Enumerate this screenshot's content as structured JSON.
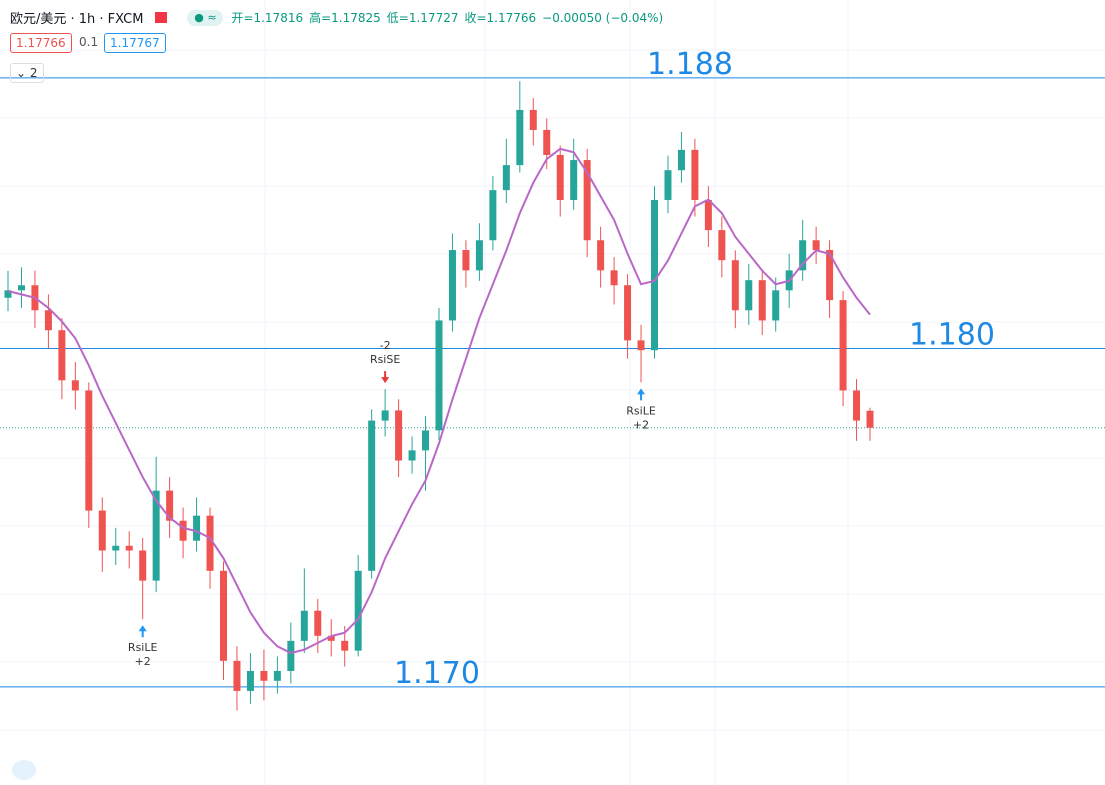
{
  "chart_data": {
    "type": "candlestick",
    "title": "欧元/美元 · 1h · FXCM",
    "header_values": [
      "开=1.17816",
      "高=1.17825",
      "低=1.17727",
      "收=1.17766",
      "−0.00050 (−0.04%)"
    ],
    "bid": "1.17766",
    "spread": "0.1",
    "ask": "1.17767",
    "indicator_count": "2",
    "up_color": "#26a69a",
    "down_color": "#ef5350",
    "ylim": [
      1.1671,
      1.1903
    ],
    "ohlc": [
      [
        1.1815,
        1.1823,
        1.1811,
        1.18172
      ],
      [
        1.18172,
        1.1824,
        1.1812,
        1.18187
      ],
      [
        1.18187,
        1.1823,
        1.1806,
        1.18113
      ],
      [
        1.18113,
        1.1816,
        1.18,
        1.18054
      ],
      [
        1.18054,
        1.1809,
        1.1785,
        1.17906
      ],
      [
        1.17906,
        1.1796,
        1.1782,
        1.17876
      ],
      [
        1.17876,
        1.179,
        1.1747,
        1.17521
      ],
      [
        1.17521,
        1.1756,
        1.1734,
        1.17403
      ],
      [
        1.17403,
        1.1747,
        1.1736,
        1.17417
      ],
      [
        1.17417,
        1.1746,
        1.1735,
        1.17403
      ],
      [
        1.17403,
        1.1744,
        1.172,
        1.17314
      ],
      [
        1.17314,
        1.1768,
        1.1728,
        1.1758
      ],
      [
        1.1758,
        1.1762,
        1.1744,
        1.17491
      ],
      [
        1.17491,
        1.1753,
        1.1738,
        1.17432
      ],
      [
        1.17432,
        1.1756,
        1.174,
        1.17506
      ],
      [
        1.17506,
        1.1753,
        1.1729,
        1.17343
      ],
      [
        1.17343,
        1.1737,
        1.1702,
        1.17077
      ],
      [
        1.17077,
        1.1712,
        1.1693,
        1.16988
      ],
      [
        1.16988,
        1.171,
        1.1695,
        1.17047
      ],
      [
        1.17047,
        1.1711,
        1.1696,
        1.17018
      ],
      [
        1.17018,
        1.1709,
        1.1698,
        1.17047
      ],
      [
        1.17047,
        1.1719,
        1.1701,
        1.17136
      ],
      [
        1.17136,
        1.1735,
        1.171,
        1.17225
      ],
      [
        1.17225,
        1.1726,
        1.171,
        1.17151
      ],
      [
        1.17151,
        1.172,
        1.1709,
        1.17136
      ],
      [
        1.17136,
        1.1718,
        1.1706,
        1.17107
      ],
      [
        1.17107,
        1.1739,
        1.1709,
        1.17343
      ],
      [
        1.17343,
        1.1782,
        1.1732,
        1.17787
      ],
      [
        1.17787,
        1.1788,
        1.1774,
        1.17817
      ],
      [
        1.17817,
        1.1785,
        1.1762,
        1.17669
      ],
      [
        1.17669,
        1.1774,
        1.1763,
        1.17699
      ],
      [
        1.17699,
        1.178,
        1.1758,
        1.17758
      ],
      [
        1.17758,
        1.1812,
        1.1773,
        1.18083
      ],
      [
        1.18083,
        1.1834,
        1.1805,
        1.18291
      ],
      [
        1.18291,
        1.1832,
        1.1818,
        1.18231
      ],
      [
        1.18231,
        1.1837,
        1.182,
        1.1832
      ],
      [
        1.1832,
        1.1851,
        1.1829,
        1.18468
      ],
      [
        1.18468,
        1.1862,
        1.1843,
        1.18542
      ],
      [
        1.18542,
        1.1879,
        1.1852,
        1.18705
      ],
      [
        1.18705,
        1.1874,
        1.186,
        1.18646
      ],
      [
        1.18646,
        1.1868,
        1.1853,
        1.18572
      ],
      [
        1.18572,
        1.186,
        1.1839,
        1.18439
      ],
      [
        1.18439,
        1.1862,
        1.1841,
        1.18557
      ],
      [
        1.18557,
        1.1859,
        1.1827,
        1.1832
      ],
      [
        1.1832,
        1.1836,
        1.1818,
        1.18231
      ],
      [
        1.18231,
        1.1827,
        1.1813,
        1.18187
      ],
      [
        1.18187,
        1.1822,
        1.1797,
        1.18024
      ],
      [
        1.18024,
        1.1807,
        1.179,
        1.17995
      ],
      [
        1.17995,
        1.1848,
        1.1797,
        1.18439
      ],
      [
        1.18439,
        1.1857,
        1.184,
        1.18527
      ],
      [
        1.18527,
        1.1864,
        1.1849,
        1.18587
      ],
      [
        1.18587,
        1.1862,
        1.1839,
        1.18439
      ],
      [
        1.18439,
        1.1848,
        1.183,
        1.1835
      ],
      [
        1.1835,
        1.1839,
        1.1821,
        1.18261
      ],
      [
        1.18261,
        1.1829,
        1.1806,
        1.18113
      ],
      [
        1.18113,
        1.1825,
        1.1807,
        1.18202
      ],
      [
        1.18202,
        1.1823,
        1.1804,
        1.18083
      ],
      [
        1.18083,
        1.1821,
        1.1805,
        1.18172
      ],
      [
        1.18172,
        1.1828,
        1.1812,
        1.18231
      ],
      [
        1.18231,
        1.1838,
        1.182,
        1.1832
      ],
      [
        1.1832,
        1.1836,
        1.1825,
        1.18291
      ],
      [
        1.18291,
        1.1832,
        1.1809,
        1.18143
      ],
      [
        1.18143,
        1.1817,
        1.1783,
        1.17876
      ],
      [
        1.17876,
        1.1791,
        1.17727,
        1.17787
      ],
      [
        1.17816,
        1.17825,
        1.17727,
        1.17766
      ]
    ],
    "ma": {
      "color": "#ba68c8",
      "values": [
        1.1817,
        1.1816,
        1.1815,
        1.1812,
        1.1808,
        1.1803,
        1.1795,
        1.1786,
        1.1778,
        1.177,
        1.1762,
        1.1755,
        1.175,
        1.1747,
        1.1746,
        1.1744,
        1.1738,
        1.173,
        1.1722,
        1.1716,
        1.1712,
        1.171,
        1.1711,
        1.1713,
        1.1715,
        1.1716,
        1.172,
        1.1728,
        1.1738,
        1.1746,
        1.1754,
        1.1761,
        1.1772,
        1.1785,
        1.1797,
        1.1809,
        1.1819,
        1.1829,
        1.184,
        1.1849,
        1.1856,
        1.1859,
        1.1858,
        1.1852,
        1.1845,
        1.1838,
        1.1828,
        1.1819,
        1.182,
        1.1826,
        1.1834,
        1.1842,
        1.1844,
        1.184,
        1.1833,
        1.1828,
        1.1823,
        1.1819,
        1.182,
        1.1825,
        1.1829,
        1.1828,
        1.1821,
        1.1815,
        1.181
      ]
    },
    "levels": [
      {
        "value": 1.188,
        "label": "1.188"
      },
      {
        "value": 1.18,
        "label": "1.180"
      },
      {
        "value": 1.17,
        "label": "1.170"
      }
    ],
    "level_color": "#1e88e5",
    "signals": [
      {
        "label": "RsiLE",
        "qty": "+2",
        "color": "#2196f3"
      },
      {
        "label": "RsiSE",
        "qty": "-2",
        "color": "#e53935"
      },
      {
        "label": "RsiLE",
        "qty": "+2",
        "color": "#2196f3"
      }
    ]
  }
}
